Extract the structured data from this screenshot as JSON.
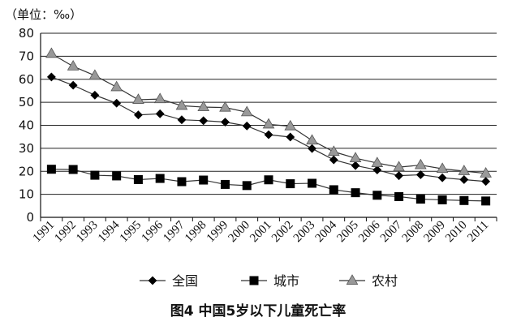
{
  "chart_data": {
    "type": "line",
    "unit_label": "（单位：‰）",
    "title": "图4  中国5岁以下儿童死亡率",
    "xlabel": "",
    "ylabel": "",
    "ylim": [
      0,
      80
    ],
    "yticks": [
      "0",
      "10",
      "20",
      "30",
      "40",
      "50",
      "60",
      "70",
      "80"
    ],
    "grid": "horizontal",
    "legend_position": "bottom",
    "x": [
      "1991",
      "1992",
      "1993",
      "1994",
      "1995",
      "1996",
      "1997",
      "1998",
      "1999",
      "2000",
      "2001",
      "2002",
      "2003",
      "2004",
      "2005",
      "2006",
      "2007",
      "2008",
      "2009",
      "2010",
      "2011"
    ],
    "series": [
      {
        "name": "全国",
        "marker": "diamond",
        "color": "#000000",
        "values": [
          61.0,
          57.4,
          53.1,
          49.6,
          44.5,
          45.0,
          42.4,
          42.0,
          41.4,
          39.7,
          35.9,
          34.9,
          29.9,
          25.0,
          22.5,
          20.6,
          18.1,
          18.5,
          17.2,
          16.4,
          15.6
        ]
      },
      {
        "name": "城市",
        "marker": "square",
        "color": "#000000",
        "values": [
          20.9,
          20.8,
          18.3,
          18.0,
          16.4,
          16.9,
          15.5,
          16.2,
          14.3,
          13.8,
          16.3,
          14.6,
          14.8,
          12.0,
          10.7,
          9.6,
          9.0,
          7.9,
          7.6,
          7.3,
          7.1
        ]
      },
      {
        "name": "农村",
        "marker": "triangle",
        "color": "#999999",
        "values": [
          71.1,
          65.6,
          61.6,
          56.6,
          51.1,
          51.4,
          48.5,
          47.9,
          47.7,
          45.7,
          40.4,
          39.6,
          33.4,
          28.5,
          25.7,
          23.6,
          21.8,
          22.7,
          21.1,
          20.1,
          19.1
        ]
      }
    ]
  }
}
